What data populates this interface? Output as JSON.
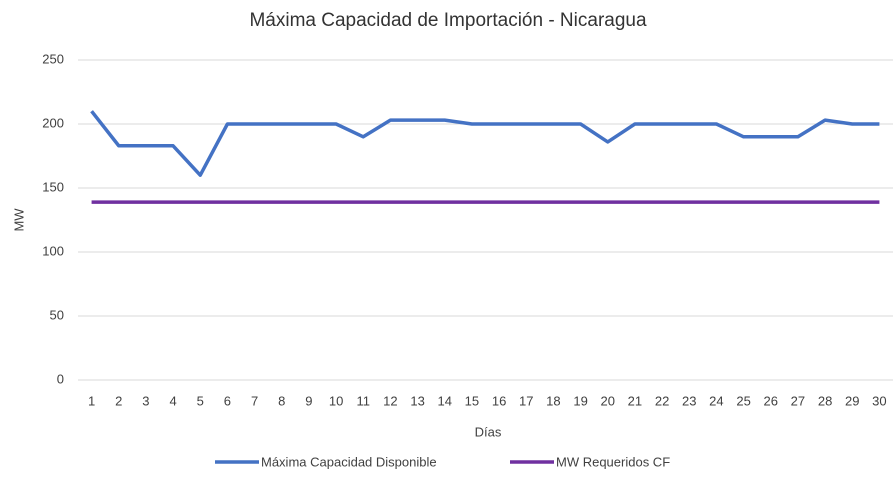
{
  "chart_data": {
    "type": "line",
    "title": "Máxima Capacidad de Importación - Nicaragua",
    "x_label": "Días",
    "y_label": "MW",
    "categories": [
      "1",
      "2",
      "3",
      "4",
      "5",
      "6",
      "7",
      "8",
      "9",
      "10",
      "11",
      "12",
      "13",
      "14",
      "15",
      "16",
      "17",
      "18",
      "19",
      "20",
      "21",
      "22",
      "23",
      "24",
      "25",
      "26",
      "27",
      "28",
      "29",
      "30"
    ],
    "series": [
      {
        "name": "Máxima Capacidad Disponible",
        "color": "#4472c4",
        "values": [
          210,
          183,
          183,
          183,
          160,
          200,
          200,
          200,
          200,
          200,
          190,
          203,
          203,
          203,
          200,
          200,
          200,
          200,
          200,
          186,
          200,
          200,
          200,
          200,
          190,
          190,
          190,
          203,
          200,
          200
        ]
      },
      {
        "name": "MW Requeridos CF",
        "color": "#7030a0",
        "values": [
          139,
          139,
          139,
          139,
          139,
          139,
          139,
          139,
          139,
          139,
          139,
          139,
          139,
          139,
          139,
          139,
          139,
          139,
          139,
          139,
          139,
          139,
          139,
          139,
          139,
          139,
          139,
          139,
          139,
          139
        ]
      }
    ],
    "ylim": [
      0,
      250
    ],
    "yticks": [
      0,
      50,
      100,
      150,
      200,
      250
    ],
    "grid": true,
    "legend": "bottom"
  }
}
